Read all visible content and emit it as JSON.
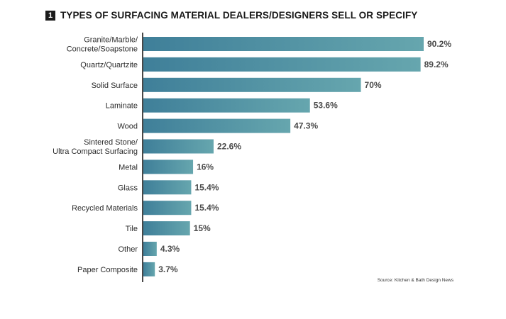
{
  "header": {
    "figure_number": "1",
    "title": "TYPES OF SURFACING MATERIAL DEALERS/DESIGNERS SELL OR SPECIFY"
  },
  "footer": {
    "source": "Source: Kitchen & Bath Design News"
  },
  "colors": {
    "bar_start": "#3f7f99",
    "bar_end": "#66a6ae",
    "axis": "#1a1a1a"
  },
  "chart_data": {
    "type": "bar",
    "orientation": "horizontal",
    "title": "TYPES OF SURFACING MATERIAL DEALERS/DESIGNERS SELL OR SPECIFY",
    "xlabel": "",
    "ylabel": "",
    "grid": false,
    "legend": "none",
    "xlim": [
      0,
      90.2
    ],
    "categories": [
      [
        "Granite/Marble/",
        "Concrete/Soapstone"
      ],
      [
        "Quartz/Quartzite"
      ],
      [
        "Solid Surface"
      ],
      [
        "Laminate"
      ],
      [
        "Wood"
      ],
      [
        "Sintered Stone/",
        "Ultra Compact Surfacing"
      ],
      [
        "Metal"
      ],
      [
        "Glass"
      ],
      [
        "Recycled Materials"
      ],
      [
        "Tile"
      ],
      [
        "Other"
      ],
      [
        "Paper Composite"
      ]
    ],
    "values": [
      90.2,
      89.2,
      70,
      53.6,
      47.3,
      22.6,
      16,
      15.4,
      15.4,
      15,
      4.3,
      3.7
    ],
    "value_labels": [
      "90.2%",
      "89.2%",
      "70%",
      "53.6%",
      "47.3%",
      "22.6%",
      "16%",
      "15.4%",
      "15.4%",
      "15%",
      "4.3%",
      "3.7%"
    ]
  }
}
